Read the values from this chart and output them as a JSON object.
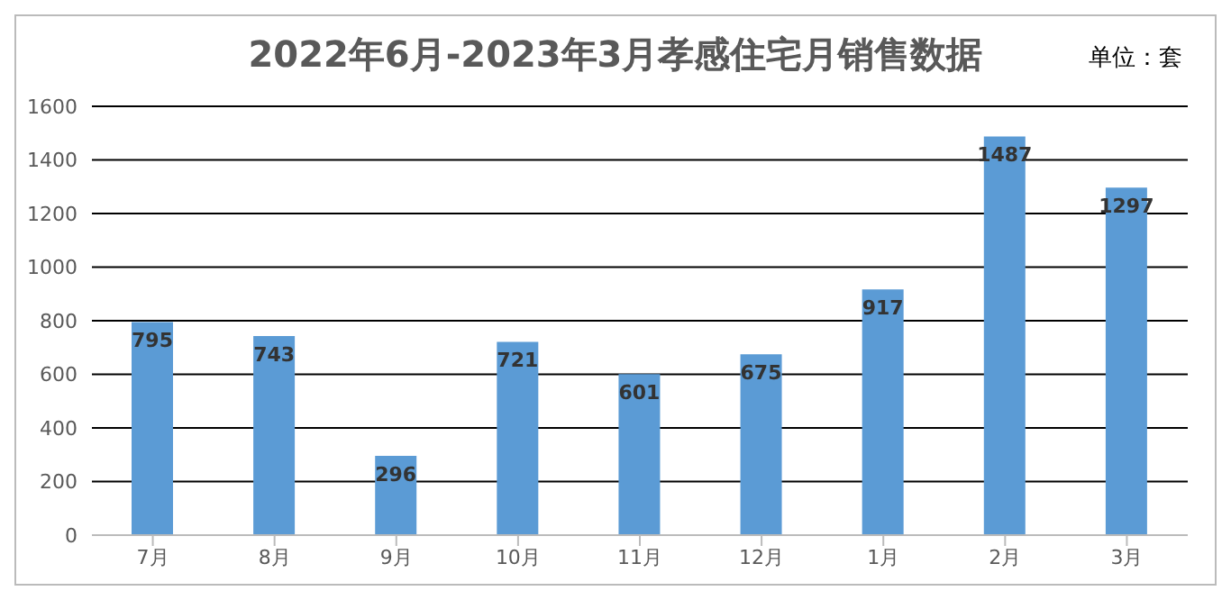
{
  "chart_data": {
    "type": "bar",
    "title": "2022年6月-2023年3月孝感住宅月销售数据",
    "annotations": [
      "单位：套"
    ],
    "categories": [
      "7月",
      "8月",
      "9月",
      "10月",
      "11月",
      "12月",
      "1月",
      "2月",
      "3月"
    ],
    "values": [
      795,
      743,
      296,
      721,
      601,
      675,
      917,
      1487,
      1297
    ],
    "color": "#5b9bd5",
    "ylim": [
      0,
      1600
    ],
    "yticks": [
      0,
      200,
      400,
      600,
      800,
      1000,
      1200,
      1400,
      1600
    ],
    "grid": "y",
    "data_labels": true
  }
}
